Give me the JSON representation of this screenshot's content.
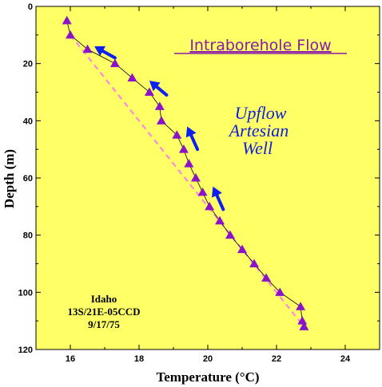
{
  "chart_data": {
    "type": "scatter",
    "title": "Intraborehole Flow",
    "xlabel": "Temperature (°C)",
    "ylabel": "Depth (m)",
    "xlim": [
      15,
      25
    ],
    "ylim": [
      0,
      120
    ],
    "y_inverted": true,
    "x_ticks": [
      "16",
      "18",
      "20",
      "22",
      "24"
    ],
    "y_ticks": [
      "0",
      "20",
      "40",
      "60",
      "80",
      "100",
      "120"
    ],
    "annotation_lines": [
      "Upflow",
      "Artesian",
      "Well"
    ],
    "site_label_lines": [
      "Idaho",
      "13S/21E-05CCD",
      "9/17/75"
    ],
    "grid": false,
    "background_color": "#ffff66",
    "series": [
      {
        "marker": "triangle",
        "color": "#8b12c8",
        "points": [
          [
            15.9,
            5
          ],
          [
            16.0,
            10
          ],
          [
            16.5,
            15
          ],
          [
            17.3,
            20
          ],
          [
            17.8,
            25
          ],
          [
            18.3,
            30
          ],
          [
            18.6,
            35
          ],
          [
            18.65,
            40
          ],
          [
            19.1,
            45
          ],
          [
            19.3,
            50
          ],
          [
            19.45,
            55
          ],
          [
            19.65,
            60
          ],
          [
            19.85,
            65
          ],
          [
            20.05,
            70
          ],
          [
            20.35,
            75
          ],
          [
            20.65,
            80
          ],
          [
            21.0,
            85
          ],
          [
            21.35,
            90
          ],
          [
            21.7,
            95
          ],
          [
            22.1,
            100
          ],
          [
            22.7,
            105
          ],
          [
            22.75,
            110
          ],
          [
            22.8,
            112
          ]
        ]
      }
    ],
    "reference_line": {
      "style": "dashed",
      "color": "#ff88dd",
      "points": [
        [
          16.0,
          10
        ],
        [
          22.8,
          112
        ]
      ]
    },
    "flow_arrows": [
      {
        "from": [
          17.3,
          18
        ],
        "to": [
          16.7,
          14
        ]
      },
      {
        "from": [
          18.8,
          31
        ],
        "to": [
          18.3,
          26
        ]
      },
      {
        "from": [
          19.7,
          50
        ],
        "to": [
          19.4,
          42
        ]
      },
      {
        "from": [
          20.45,
          71
        ],
        "to": [
          20.15,
          63
        ]
      }
    ]
  }
}
